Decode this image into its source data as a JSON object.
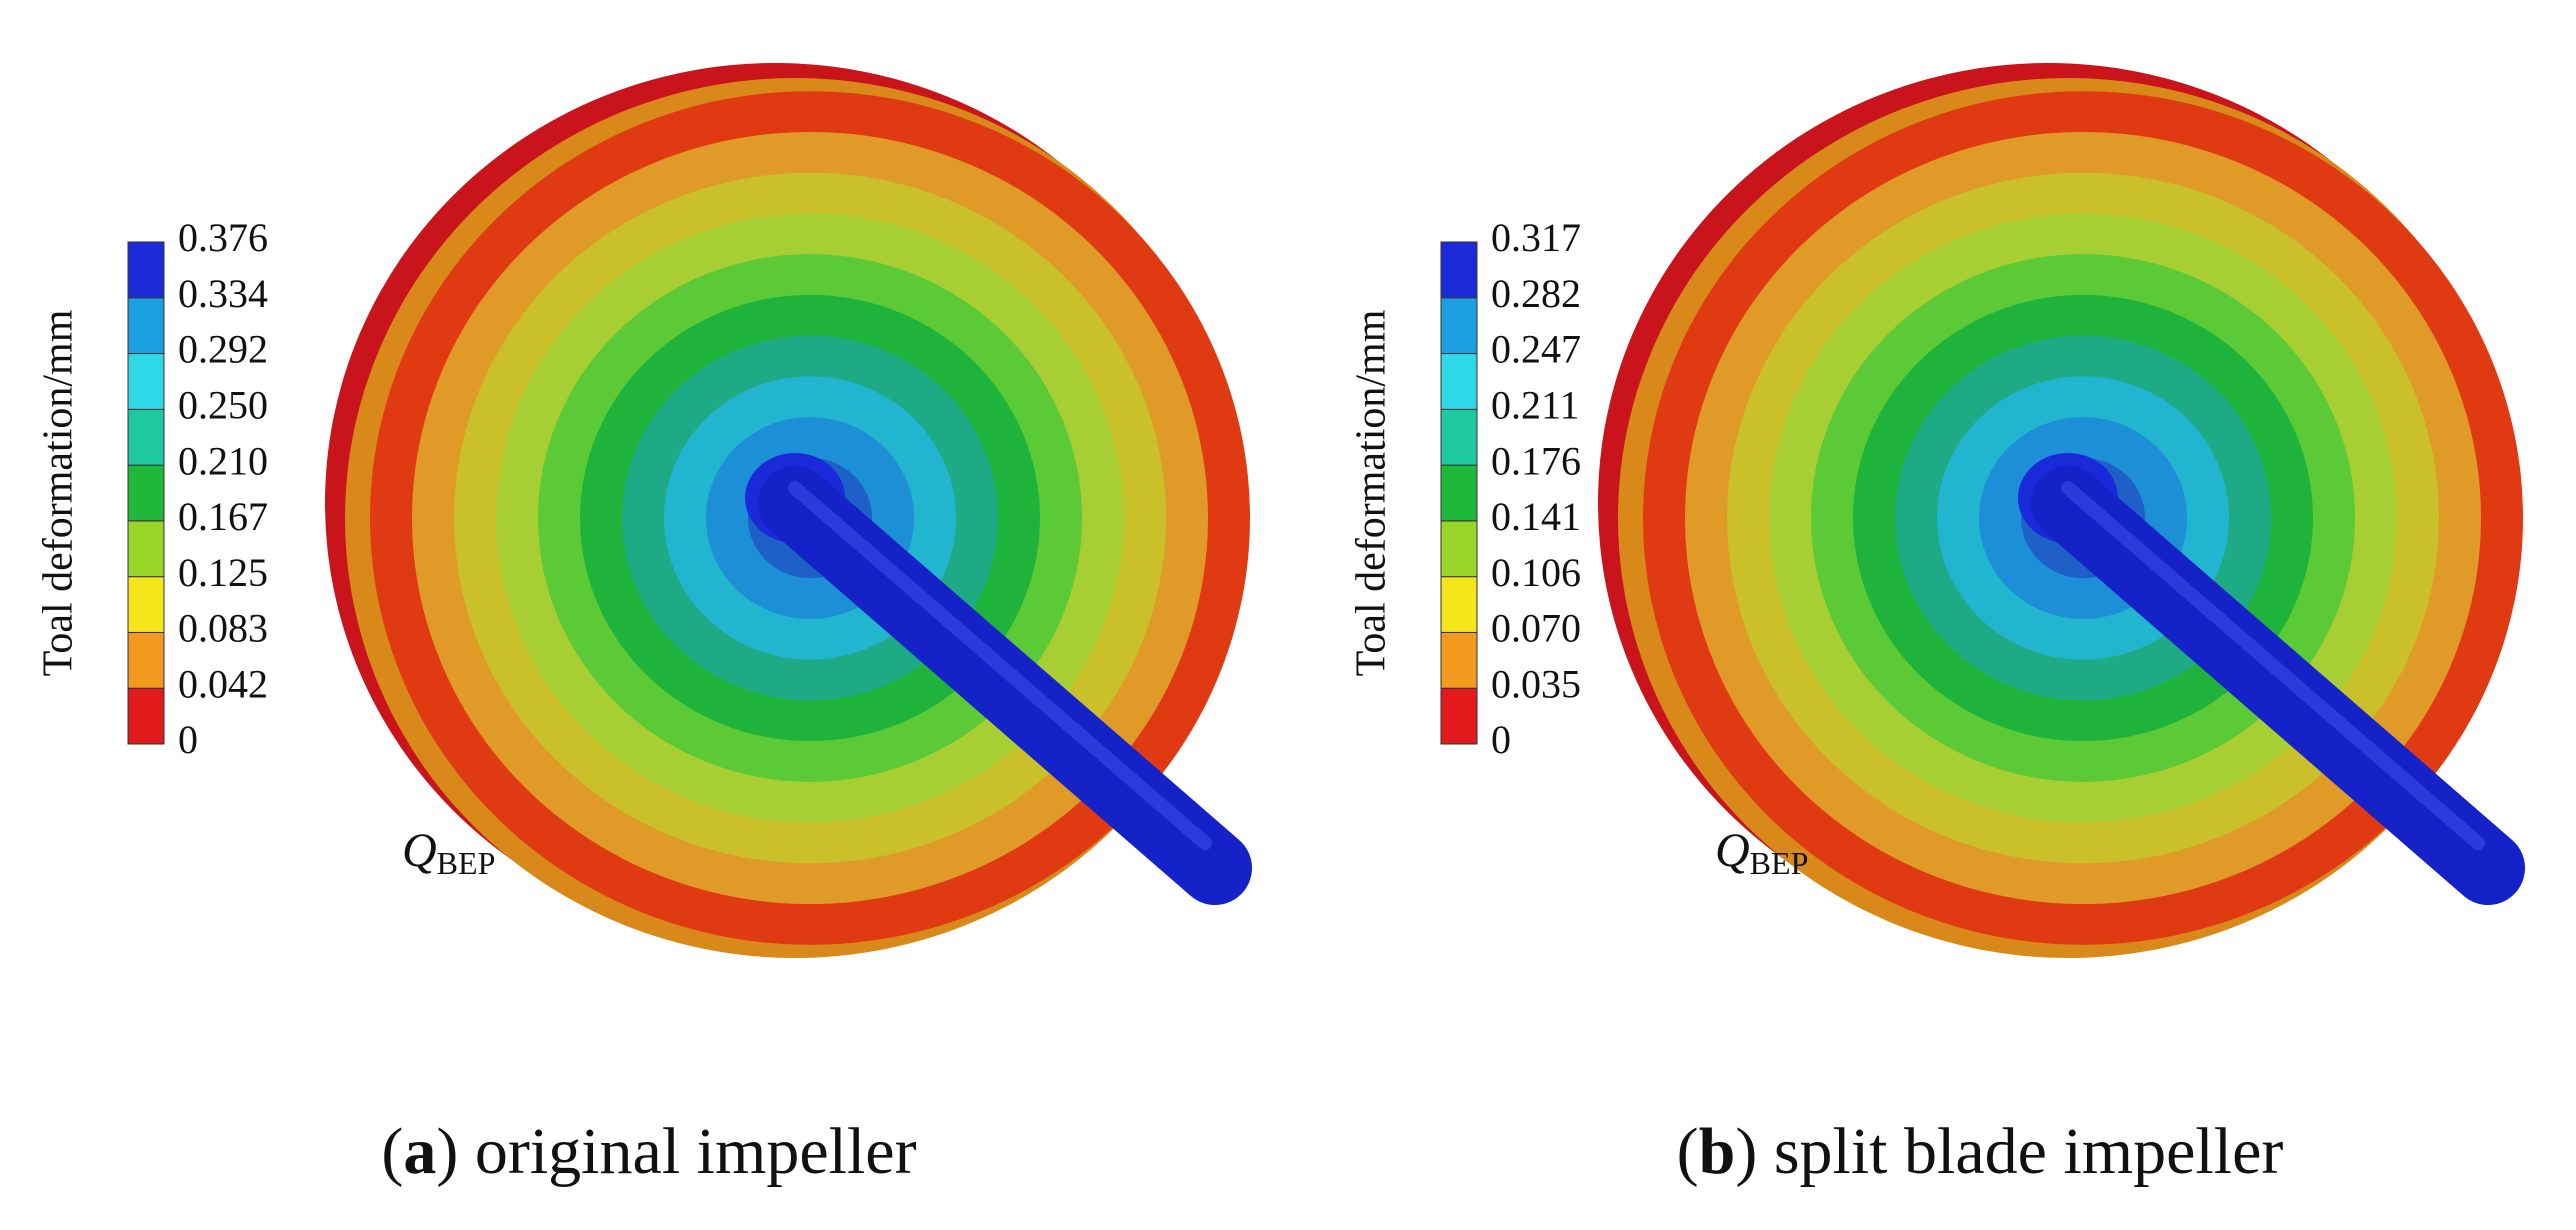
{
  "panels": [
    {
      "colorbar": {
        "title": "Toal deformation/mm",
        "ticks": [
          "0.376",
          "0.334",
          "0.292",
          "0.250",
          "0.210",
          "0.167",
          "0.125",
          "0.083",
          "0.042",
          "0"
        ]
      },
      "annotation": {
        "main": "Q",
        "sub": "BEP"
      },
      "caption": {
        "open": "(",
        "label": "a",
        "text": ") original impeller"
      }
    },
    {
      "colorbar": {
        "title": "Toal deformation/mm",
        "ticks": [
          "0.317",
          "0.282",
          "0.247",
          "0.211",
          "0.176",
          "0.141",
          "0.106",
          "0.070",
          "0.035",
          "0"
        ]
      },
      "annotation": {
        "main": "Q",
        "sub": "BEP"
      },
      "caption": {
        "open": "(",
        "label": "b",
        "text": ") split blade impeller"
      }
    }
  ],
  "colors": [
    "#e31a1c",
    "#f29a1e",
    "#f5e51b",
    "#9ad62a",
    "#1fb83b",
    "#1fc9a0",
    "#2fd8e6",
    "#1c9fe0",
    "#1a2ad8"
  ]
}
